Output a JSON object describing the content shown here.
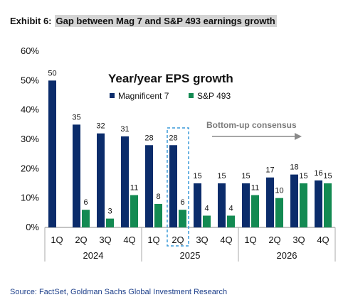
{
  "exhibit": {
    "label": "Exhibit 6:",
    "title": "Gap between Mag 7 and S&P 493 earnings growth"
  },
  "source": "Source: FactSet, Goldman Sachs Global Investment Research",
  "chart_data": {
    "type": "bar",
    "title": "Year/year EPS growth",
    "annotation": "Bottom-up consensus",
    "categories": [
      "1Q",
      "2Q",
      "3Q",
      "4Q",
      "1Q",
      "2Q",
      "3Q",
      "4Q",
      "1Q",
      "2Q",
      "3Q",
      "4Q"
    ],
    "groups": [
      {
        "label": "2024",
        "count": 4
      },
      {
        "label": "2025",
        "count": 4
      },
      {
        "label": "2026",
        "count": 4
      }
    ],
    "highlighted_category_index": 5,
    "series": [
      {
        "name": "Magnificent 7",
        "color": "#0b2c6b",
        "values": [
          50,
          35,
          32,
          31,
          28,
          28,
          15,
          15,
          15,
          17,
          18,
          16
        ],
        "labels": [
          "50",
          "35",
          "32",
          "31",
          "28",
          "28",
          "15",
          "15",
          "15",
          "17",
          "18",
          "16"
        ]
      },
      {
        "name": "S&P 493",
        "color": "#138a52",
        "values": [
          null,
          6,
          3,
          11,
          8,
          6,
          4,
          4,
          11,
          10,
          15,
          15
        ],
        "labels": [
          "",
          "6",
          "3",
          "11",
          "8",
          "6",
          "4",
          "4",
          "11",
          "10",
          "15",
          "15"
        ]
      }
    ],
    "ylim": [
      0,
      60
    ],
    "yticks": [
      "0%",
      "10%",
      "20%",
      "30%",
      "40%",
      "50%",
      "60%"
    ],
    "grid": false,
    "legend": "top-left, horizontal"
  }
}
